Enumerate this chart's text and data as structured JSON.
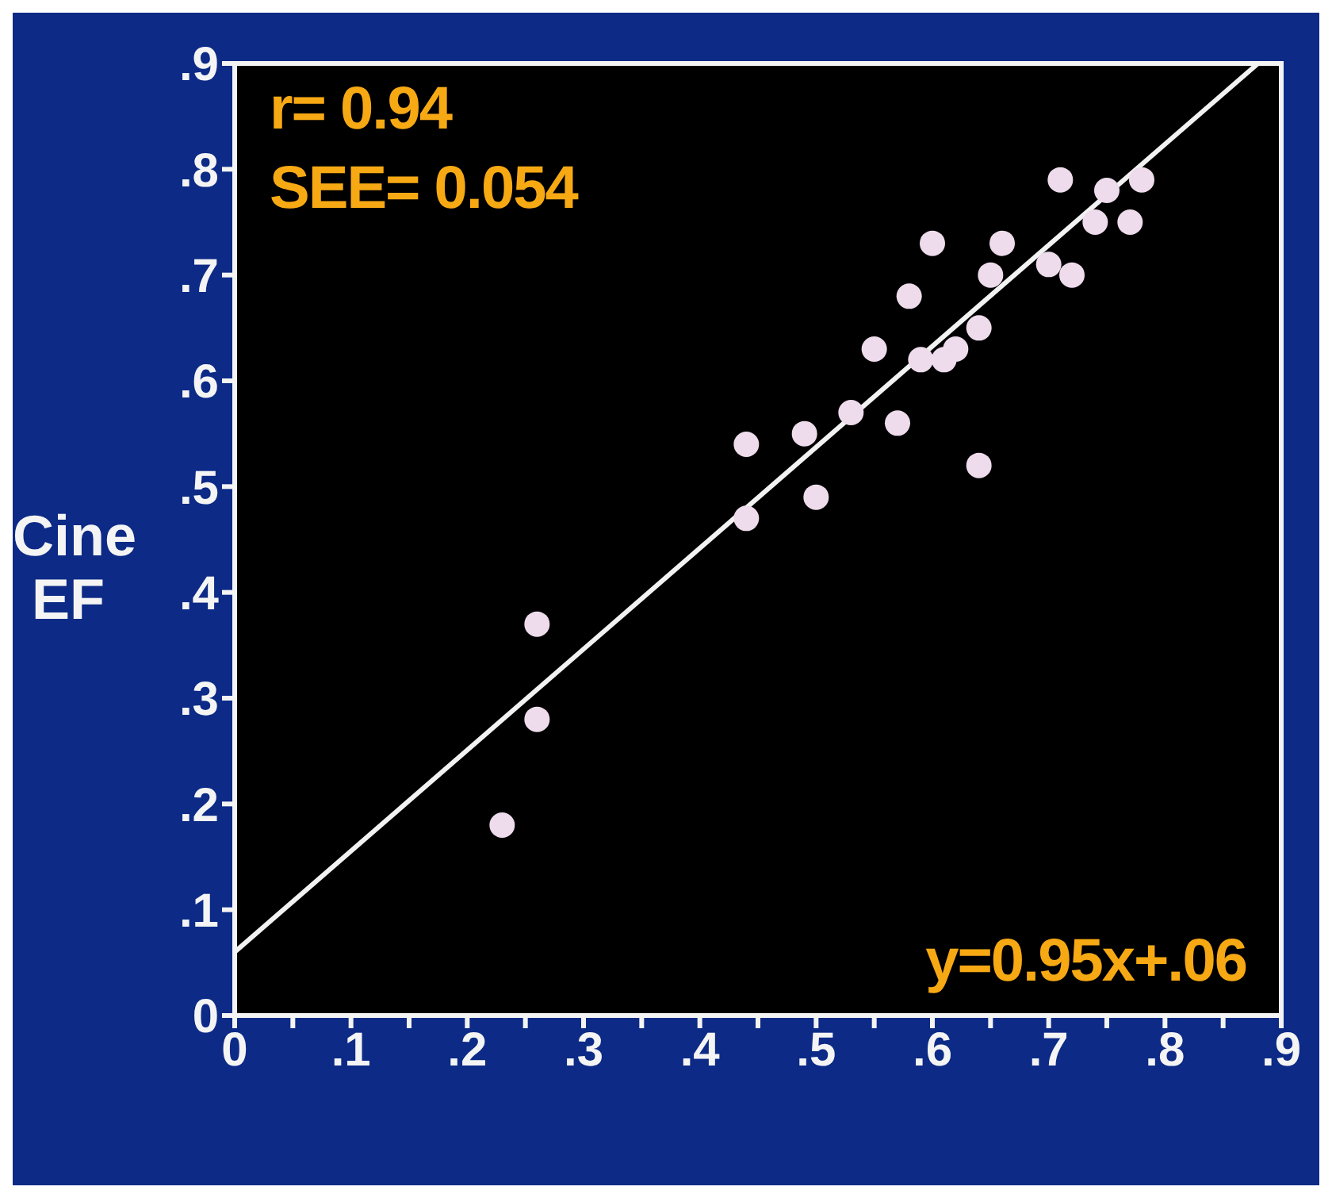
{
  "chart_data": {
    "type": "scatter",
    "ylabel": "Cine EF",
    "annotations": [
      "r= 0.94",
      "SEE= 0.054",
      "y=0.95x+.06"
    ],
    "x": [
      0.23,
      0.26,
      0.26,
      0.44,
      0.44,
      0.5,
      0.49,
      0.53,
      0.57,
      0.55,
      0.58,
      0.6,
      0.59,
      0.61,
      0.62,
      0.64,
      0.64,
      0.65,
      0.66,
      0.7,
      0.72,
      0.71,
      0.75,
      0.74,
      0.77,
      0.78
    ],
    "series": [
      {
        "color": "#eedcec",
        "marker": "circle",
        "values": [
          0.18,
          0.28,
          0.37,
          0.47,
          0.54,
          0.49,
          0.55,
          0.57,
          0.56,
          0.63,
          0.68,
          0.73,
          0.62,
          0.62,
          0.63,
          0.52,
          0.65,
          0.7,
          0.73,
          0.71,
          0.7,
          0.79,
          0.78,
          0.75,
          0.75,
          0.79
        ]
      },
      {
        "type": "line",
        "color": "#f2f2f2",
        "x": [
          0,
          0.88
        ],
        "values": [
          0.06,
          0.9
        ]
      }
    ],
    "xlim": [
      0,
      0.9
    ],
    "ylim": [
      0,
      0.9
    ],
    "xticks": [
      0,
      {
        "value": 0.05,
        "label": null
      },
      {
        "value": 0.1,
        "label": ".1"
      },
      {
        "value": 0.15,
        "label": null
      },
      {
        "value": 0.2,
        "label": ".2"
      },
      {
        "value": 0.25,
        "label": null
      },
      {
        "value": 0.3,
        "label": ".3"
      },
      {
        "value": 0.35,
        "label": null
      },
      {
        "value": 0.4,
        "label": ".4"
      },
      {
        "value": 0.45,
        "label": null
      },
      {
        "value": 0.5,
        "label": ".5"
      },
      {
        "value": 0.55,
        "label": null
      },
      {
        "value": 0.6,
        "label": ".6"
      },
      {
        "value": 0.65,
        "label": null
      },
      {
        "value": 0.7,
        "label": ".7"
      },
      {
        "value": 0.75,
        "label": null
      },
      {
        "value": 0.8,
        "label": ".8"
      },
      {
        "value": 0.85,
        "label": null
      },
      {
        "value": 0.9,
        "label": ".9"
      }
    ],
    "yticks": [
      0,
      {
        "value": 0.1,
        "label": ".1"
      },
      {
        "value": 0.2,
        "label": ".2"
      },
      {
        "value": 0.3,
        "label": ".3"
      },
      {
        "value": 0.4,
        "label": ".4"
      },
      {
        "value": 0.5,
        "label": ".5"
      },
      {
        "value": 0.6,
        "label": ".6"
      },
      {
        "value": 0.7,
        "label": ".7"
      },
      {
        "value": 0.8,
        "label": ".8"
      },
      {
        "value": 0.9,
        "label": ".9"
      }
    ]
  }
}
